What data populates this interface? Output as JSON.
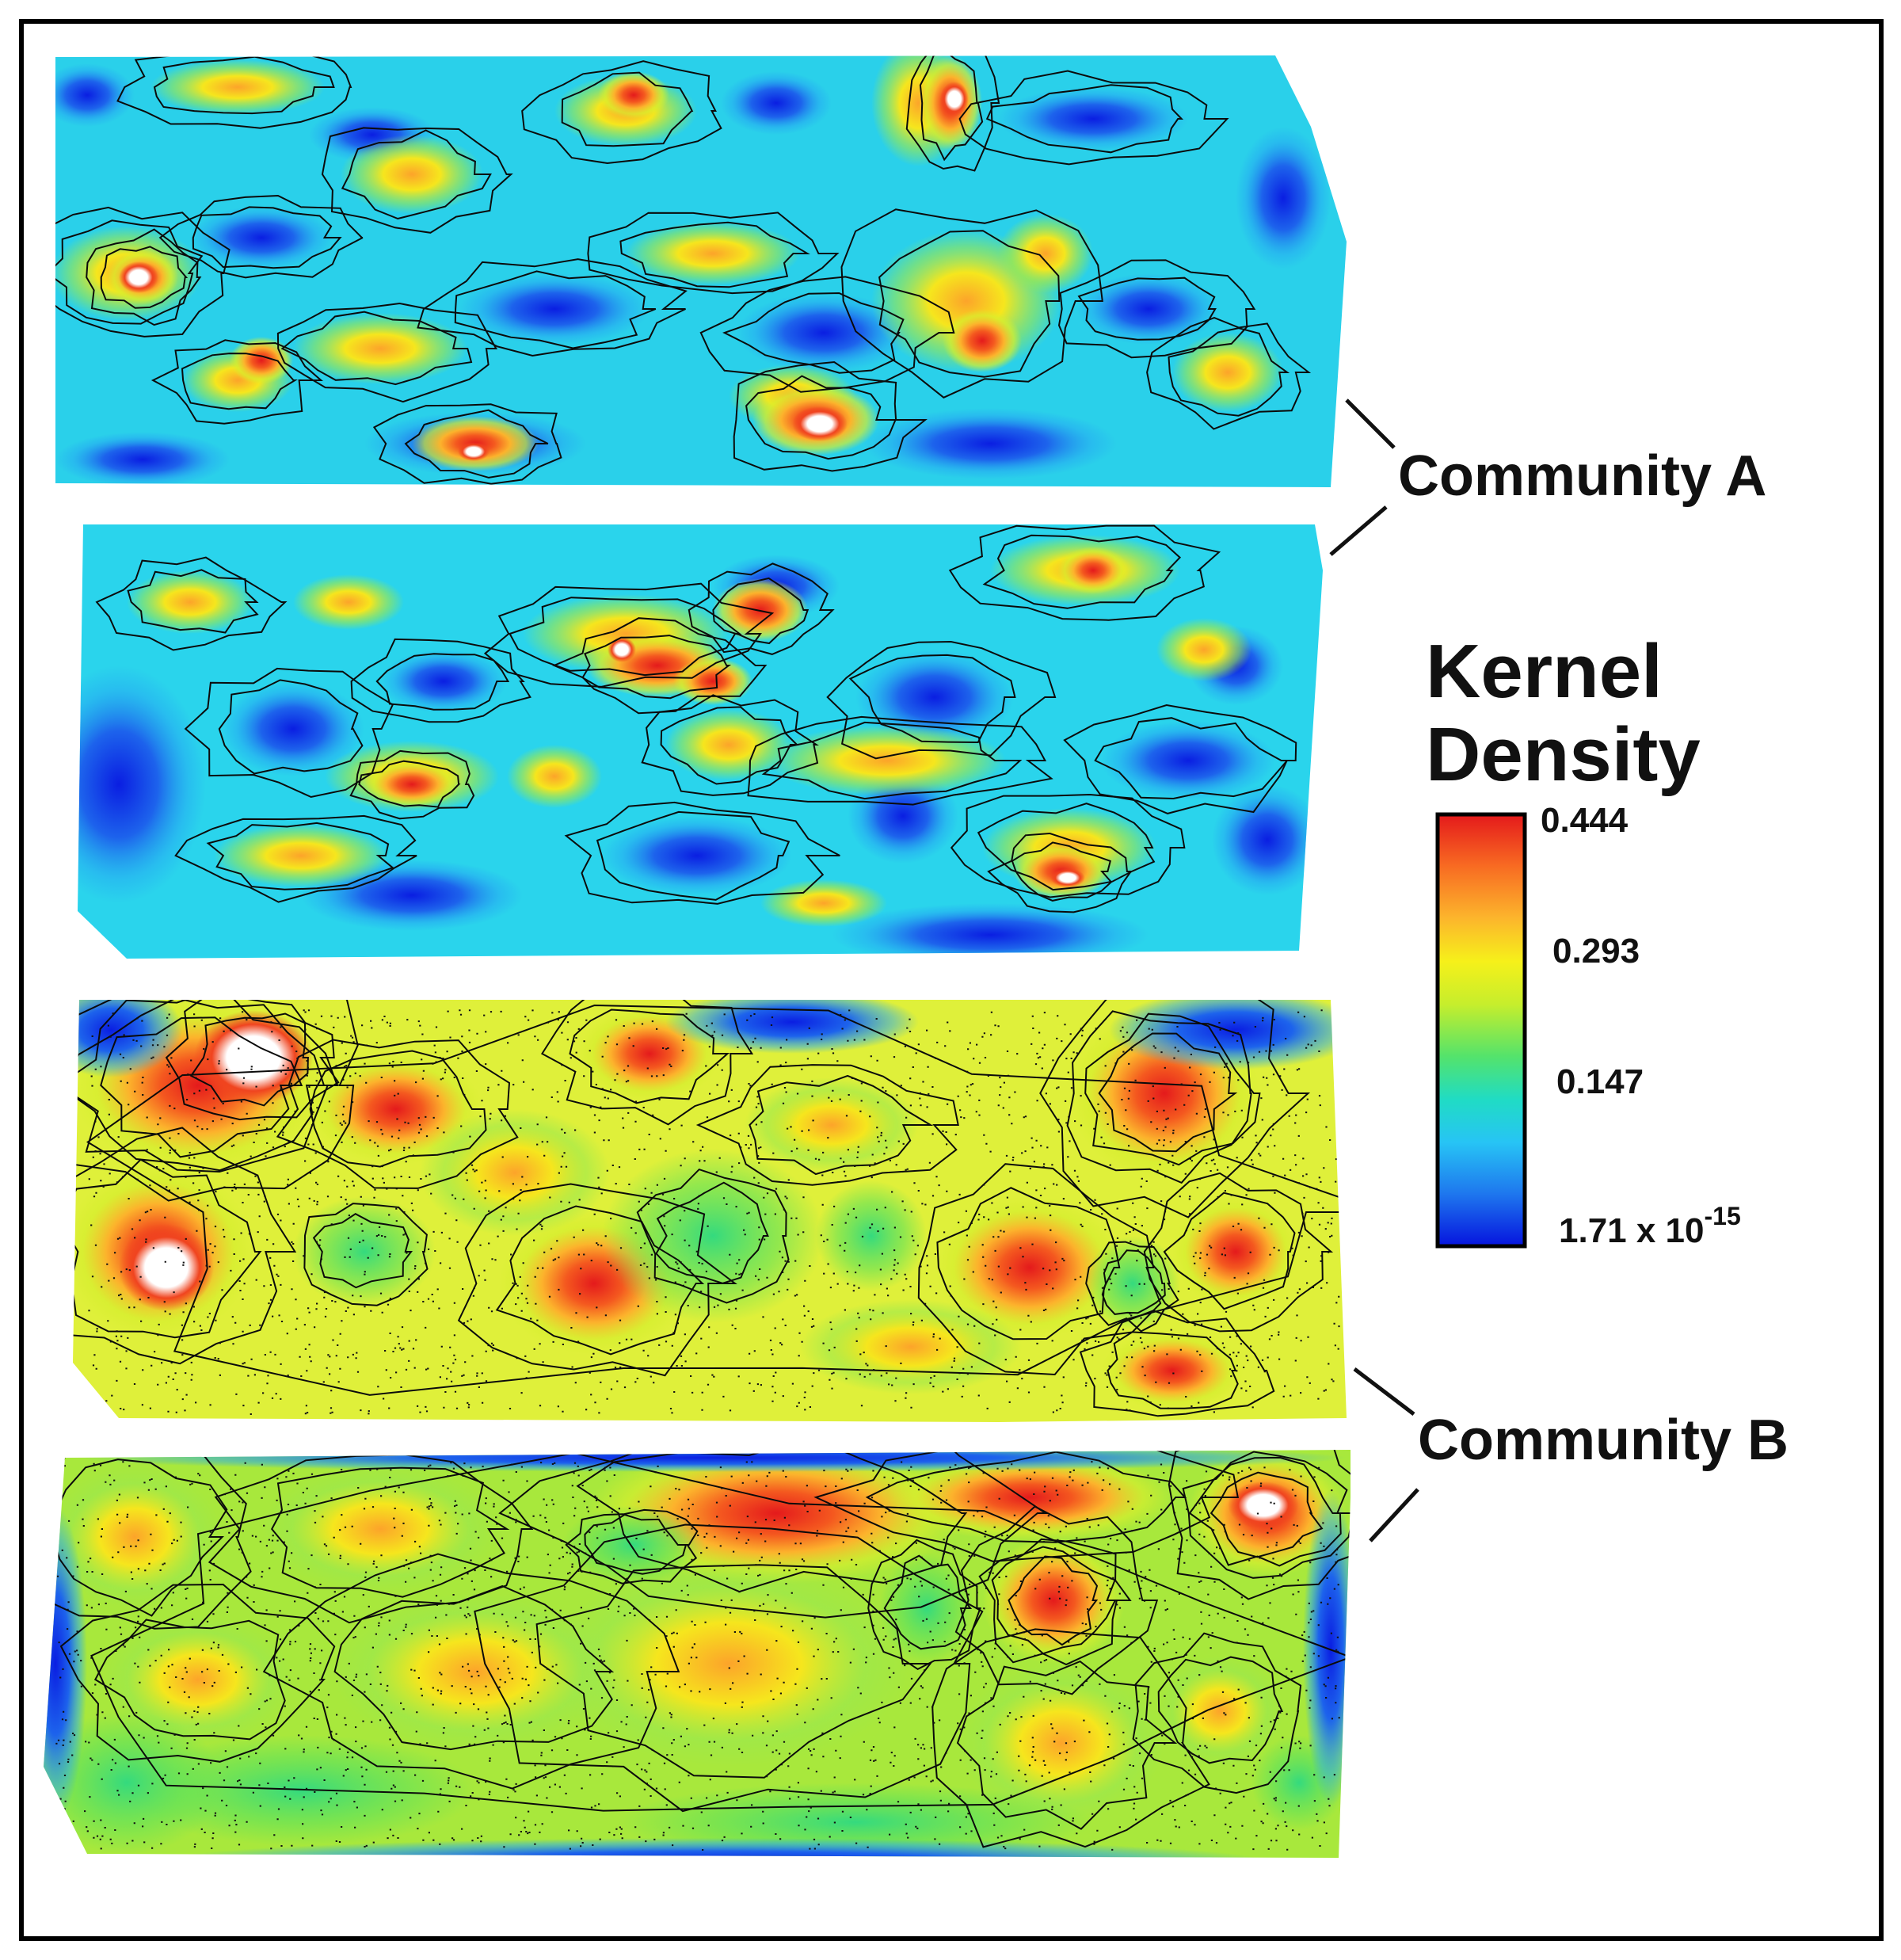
{
  "labels": {
    "community_a": "Community A",
    "community_b": "Community B"
  },
  "legend": {
    "title_line1": "Kernel",
    "title_line2": "Density",
    "tick_max": "0.444",
    "tick_upper_mid": "0.293",
    "tick_lower_mid": "0.147",
    "tick_min_base": "1.71 x 10",
    "tick_min_exp": "-15",
    "gradient_colors": [
      "#e4191b",
      "#f86b22",
      "#fcb52c",
      "#f6f01a",
      "#c6ee2c",
      "#54e36b",
      "#20dcc4",
      "#27c4f5",
      "#1e76ee",
      "#0614de"
    ]
  },
  "panels": [
    {
      "name": "community-a-upper-map",
      "community": "A",
      "base_color": "#2ad0ea"
    },
    {
      "name": "community-a-lower-map",
      "community": "A",
      "base_color": "#2ad4ec"
    },
    {
      "name": "community-b-upper-map",
      "community": "B",
      "base_color": "#dff03a"
    },
    {
      "name": "community-b-lower-map",
      "community": "B",
      "base_color": "#a8e83c"
    }
  ],
  "colors": {
    "frame": "#000000",
    "contour": "#000000",
    "peak": "#ffffff"
  }
}
